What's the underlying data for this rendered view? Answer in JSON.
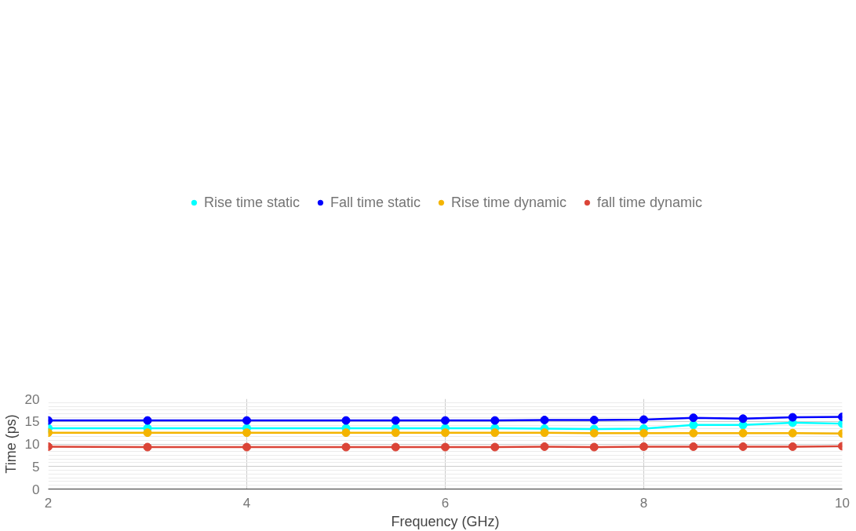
{
  "chart_data": {
    "type": "line",
    "xlabel": "Frequency (GHz)",
    "ylabel": "Time (ps)",
    "x": [
      2,
      3,
      4,
      5,
      5.5,
      6,
      6.5,
      7,
      7.5,
      8,
      8.5,
      9,
      9.5,
      10
    ],
    "series": [
      {
        "name": "Rise time static",
        "color": "#00ffff",
        "values": [
          13.5,
          13.5,
          13.5,
          13.5,
          13.5,
          13.5,
          13.5,
          13.4,
          13.3,
          13.4,
          14.2,
          14.2,
          14.7,
          14.5
        ]
      },
      {
        "name": "Fall time static",
        "color": "#0000ff",
        "values": [
          15.2,
          15.2,
          15.2,
          15.2,
          15.2,
          15.2,
          15.2,
          15.3,
          15.3,
          15.4,
          15.8,
          15.6,
          15.9,
          16.0
        ]
      },
      {
        "name": "Rise time dynamic",
        "color": "#f4b400",
        "values": [
          12.5,
          12.5,
          12.5,
          12.5,
          12.5,
          12.5,
          12.5,
          12.5,
          12.4,
          12.4,
          12.4,
          12.4,
          12.4,
          12.3
        ]
      },
      {
        "name": "fall time dynamic",
        "color": "#db4437",
        "values": [
          9.4,
          9.3,
          9.3,
          9.3,
          9.3,
          9.3,
          9.3,
          9.4,
          9.3,
          9.4,
          9.4,
          9.4,
          9.4,
          9.5
        ]
      }
    ],
    "xlim": [
      2,
      10
    ],
    "xticks": [
      2,
      4,
      6,
      8,
      10
    ],
    "ylim": [
      0,
      20
    ],
    "yticks": [
      0,
      5,
      10,
      15,
      20
    ],
    "grid": true,
    "legend": "top",
    "marker": "circle",
    "line_style": "solid"
  }
}
